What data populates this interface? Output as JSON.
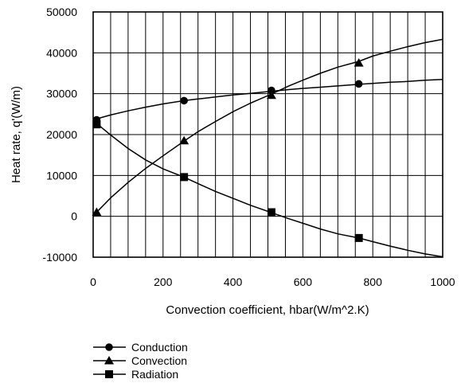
{
  "chart_data": {
    "type": "line",
    "title": "",
    "xlabel": "Convection coefficient, hbar(W/m^2.K)",
    "ylabel": "Heat rate, q'(W/m)",
    "xlim": [
      0,
      1000
    ],
    "ylim": [
      -10000,
      50000
    ],
    "x_ticks": [
      "0",
      "200",
      "400",
      "600",
      "800",
      "1000"
    ],
    "y_ticks": [
      "-10000",
      "0",
      "10000",
      "20000",
      "30000",
      "40000",
      "50000"
    ],
    "grid": true,
    "legend_position": "bottom-left",
    "series": [
      {
        "name": "Conduction",
        "marker": "circle",
        "curve": [
          [
            0,
            23600
          ],
          [
            50,
            24800
          ],
          [
            100,
            25800
          ],
          [
            150,
            26700
          ],
          [
            200,
            27500
          ],
          [
            260,
            28300
          ],
          [
            300,
            28700
          ],
          [
            350,
            29200
          ],
          [
            400,
            29700
          ],
          [
            450,
            30100
          ],
          [
            510,
            30600
          ],
          [
            560,
            31000
          ],
          [
            600,
            31300
          ],
          [
            650,
            31600
          ],
          [
            700,
            31900
          ],
          [
            760,
            32300
          ],
          [
            800,
            32500
          ],
          [
            850,
            32800
          ],
          [
            900,
            33000
          ],
          [
            950,
            33300
          ],
          [
            1000,
            33500
          ]
        ],
        "markers": [
          [
            10,
            23600
          ],
          [
            260,
            28300
          ],
          [
            510,
            30800
          ],
          [
            760,
            32400
          ]
        ]
      },
      {
        "name": "Convection",
        "marker": "triangle",
        "curve": [
          [
            10,
            1000
          ],
          [
            50,
            4500
          ],
          [
            100,
            8300
          ],
          [
            150,
            11700
          ],
          [
            200,
            14800
          ],
          [
            260,
            18400
          ],
          [
            300,
            20700
          ],
          [
            350,
            23200
          ],
          [
            400,
            25600
          ],
          [
            450,
            27700
          ],
          [
            510,
            29900
          ],
          [
            560,
            31900
          ],
          [
            600,
            33300
          ],
          [
            650,
            35000
          ],
          [
            700,
            36500
          ],
          [
            760,
            37900
          ],
          [
            800,
            39200
          ],
          [
            850,
            40400
          ],
          [
            900,
            41500
          ],
          [
            950,
            42500
          ],
          [
            1000,
            43300
          ]
        ],
        "markers": [
          [
            10,
            1000
          ],
          [
            260,
            18500
          ],
          [
            510,
            29600
          ],
          [
            760,
            37500
          ]
        ]
      },
      {
        "name": "Radiation",
        "marker": "square",
        "curve": [
          [
            10,
            22700
          ],
          [
            50,
            19900
          ],
          [
            100,
            16600
          ],
          [
            150,
            13800
          ],
          [
            200,
            11600
          ],
          [
            260,
            9600
          ],
          [
            300,
            8000
          ],
          [
            350,
            6100
          ],
          [
            400,
            4400
          ],
          [
            450,
            2700
          ],
          [
            510,
            900
          ],
          [
            560,
            -600
          ],
          [
            600,
            -1700
          ],
          [
            650,
            -3100
          ],
          [
            700,
            -4300
          ],
          [
            760,
            -5300
          ],
          [
            800,
            -6200
          ],
          [
            850,
            -7300
          ],
          [
            900,
            -8300
          ],
          [
            950,
            -9200
          ],
          [
            1000,
            -9900
          ]
        ],
        "markers": [
          [
            10,
            22500
          ],
          [
            260,
            9600
          ],
          [
            510,
            1000
          ],
          [
            760,
            -5300
          ]
        ]
      }
    ]
  }
}
